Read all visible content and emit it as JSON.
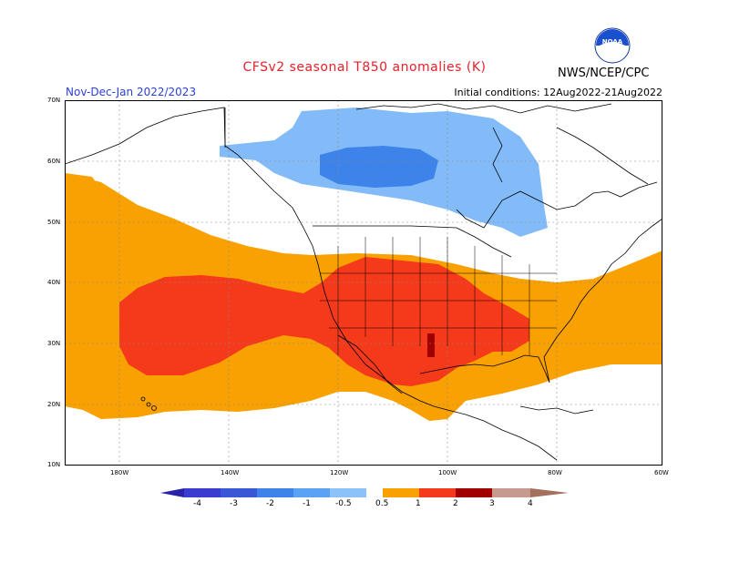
{
  "title": "CFSv2 seasonal T850 anomalies (K)",
  "season": "Nov-Dec-Jan 2022/2023",
  "initial_conditions": "Initial conditions: 12Aug2022-21Aug2022",
  "agency": "NWS/NCEP/CPC",
  "logo": {
    "text": "NOAA",
    "icon": "noaa-logo-icon"
  },
  "map": {
    "region": "North America and eastern Pacific",
    "lat_range": [
      10,
      70
    ],
    "lon_range": [
      -190,
      -60
    ],
    "lat_ticks": [
      "70N",
      "60N",
      "50N",
      "40N",
      "30N",
      "20N",
      "10N"
    ],
    "lon_ticks": [
      "180W",
      "140W",
      "120W",
      "100W",
      "80W",
      "60W"
    ],
    "colors": {
      "neg2": "#3a6fe0",
      "neg1": "#62a3f4",
      "neg05": "#82bbf8",
      "pos05": "#f9a100",
      "pos1": "#f5391b",
      "pos2": "#a10000",
      "land_outline": "#000000",
      "grid": "#888888"
    }
  },
  "legend": {
    "labels": [
      "-4",
      "-3",
      "-2",
      "-1",
      "-0.5",
      "0.5",
      "1",
      "2",
      "3",
      "4"
    ],
    "colors": [
      "#2a22a8",
      "#3a58d6",
      "#3d83ea",
      "#5aa2f4",
      "#8cc2f8",
      "#ffffff",
      "#f9a100",
      "#f5391b",
      "#a10000",
      "#c69b8e",
      "#a4705e"
    ]
  }
}
